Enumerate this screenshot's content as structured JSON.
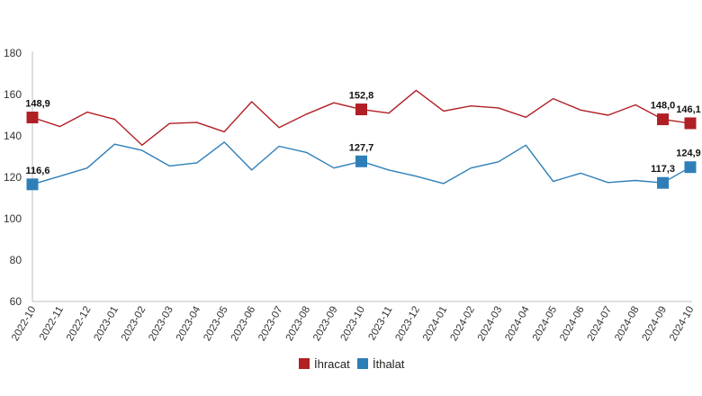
{
  "chart_data": {
    "type": "line",
    "categories": [
      "2022-10",
      "2022-11",
      "2022-12",
      "2023-01",
      "2023-02",
      "2023-03",
      "2023-04",
      "2023-05",
      "2023-06",
      "2023-07",
      "2023-08",
      "2023-09",
      "2023-10",
      "2023-11",
      "2023-12",
      "2024-01",
      "2024-02",
      "2024-03",
      "2024-04",
      "2024-05",
      "2024-06",
      "2024-07",
      "2024-08",
      "2024-09",
      "2024-10"
    ],
    "ylim": [
      60,
      180
    ],
    "yticks": [
      "60",
      "80",
      "100",
      "120",
      "140",
      "160",
      "180"
    ],
    "grid": false,
    "legend_position": "bottom",
    "series": [
      {
        "name": "İhracat",
        "color": "#b01f24",
        "values": [
          148.9,
          144.5,
          151.5,
          148.0,
          135.5,
          146.0,
          146.5,
          142.0,
          156.5,
          144.0,
          150.5,
          156.0,
          152.8,
          151.0,
          162.0,
          152.0,
          154.5,
          153.5,
          149.0,
          158.0,
          152.5,
          150.0,
          155.0,
          148.0,
          146.1
        ],
        "labels": [
          {
            "index": 0,
            "text": "148,9"
          },
          {
            "index": 12,
            "text": "152,8"
          },
          {
            "index": 23,
            "text": "148,0"
          },
          {
            "index": 24,
            "text": "146,1"
          }
        ]
      },
      {
        "name": "İthalat",
        "color": "#2e7fb8",
        "values": [
          116.6,
          120.5,
          124.5,
          136.0,
          133.0,
          125.5,
          127.0,
          137.0,
          123.5,
          135.0,
          132.0,
          124.5,
          127.7,
          123.5,
          120.5,
          117.0,
          124.5,
          127.5,
          135.5,
          118.0,
          122.0,
          117.5,
          118.5,
          117.3,
          124.9
        ],
        "labels": [
          {
            "index": 0,
            "text": "116,6"
          },
          {
            "index": 12,
            "text": "127,7"
          },
          {
            "index": 23,
            "text": "117,3"
          },
          {
            "index": 24,
            "text": "124,9"
          }
        ]
      }
    ]
  }
}
